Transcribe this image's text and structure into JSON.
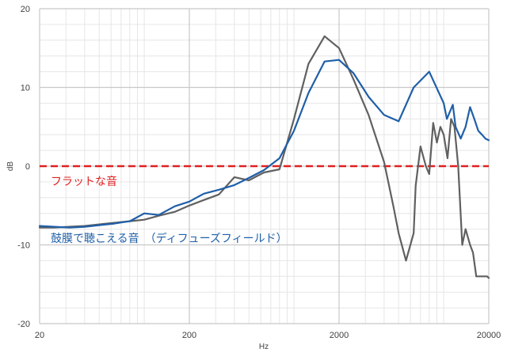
{
  "chart_data": {
    "type": "line",
    "xlabel": "Hz",
    "ylabel": "dB",
    "xscale": "log",
    "xlim": [
      20,
      20000
    ],
    "ylim": [
      -20,
      20
    ],
    "x_ticks": [
      "20",
      "200",
      "2000",
      "20000"
    ],
    "y_ticks": [
      "-20",
      "-10",
      "0",
      "10",
      "20"
    ],
    "grid": true,
    "annotations": [
      {
        "text": "フラットな音",
        "color": "#e02020"
      },
      {
        "text": "鼓膜で聴こえる音　（ディフューズフィールド）",
        "color": "#1f5fa8"
      }
    ],
    "reference_line": {
      "y": 0,
      "color": "#e02020",
      "style": "dashed"
    },
    "series": [
      {
        "color": "#1f5fa8",
        "x": [
          20,
          25,
          31.5,
          40,
          50,
          63,
          80,
          100,
          125,
          160,
          200,
          250,
          315,
          400,
          500,
          630,
          800,
          1000,
          1250,
          1600,
          2000,
          2500,
          3150,
          4000,
          5000,
          6300,
          8000,
          10000,
          10500,
          11500,
          12000,
          13000,
          14000,
          15000,
          16000,
          17000,
          18000,
          19000,
          20000
        ],
        "y": [
          -7.6,
          -7.7,
          -7.8,
          -7.7,
          -7.5,
          -7.3,
          -7.0,
          -6.0,
          -6.2,
          -5.1,
          -4.5,
          -3.5,
          -3.0,
          -2.4,
          -1.5,
          -0.5,
          1.0,
          4.5,
          9.3,
          13.3,
          13.5,
          11.8,
          8.8,
          6.5,
          5.7,
          10.0,
          12.0,
          8.0,
          6.0,
          7.8,
          5.0,
          3.5,
          5.0,
          7.5,
          6.0,
          4.5,
          4.0,
          3.5,
          3.3
        ]
      },
      {
        "color": "#606060",
        "x": [
          20,
          25,
          31.5,
          40,
          50,
          63,
          80,
          100,
          125,
          160,
          200,
          250,
          315,
          400,
          500,
          630,
          800,
          1000,
          1250,
          1600,
          2000,
          2500,
          3150,
          4000,
          4600,
          5000,
          5600,
          6300,
          6500,
          7000,
          7600,
          8000,
          8500,
          9000,
          9500,
          10000,
          10600,
          11200,
          11800,
          12500,
          13300,
          14000,
          15000,
          15700,
          16500,
          17200,
          18000,
          18500,
          19000,
          19500,
          20000
        ],
        "y": [
          -7.8,
          -7.8,
          -7.7,
          -7.6,
          -7.4,
          -7.2,
          -7.0,
          -6.8,
          -6.3,
          -5.8,
          -5.0,
          -4.3,
          -3.6,
          -1.4,
          -1.8,
          -0.8,
          -0.4,
          6.0,
          13.0,
          16.5,
          15.0,
          11.0,
          6.5,
          0.5,
          -5.0,
          -8.5,
          -12.0,
          -8.5,
          -2.5,
          2.5,
          0.0,
          -1.0,
          5.5,
          3.0,
          5.0,
          4.0,
          1.0,
          6.0,
          5.0,
          0.0,
          -10.0,
          -8.0,
          -10.0,
          -11.0,
          -14.0,
          -14.0,
          -14.0,
          -14.0,
          -14.0,
          -14.0,
          -14.2
        ]
      }
    ]
  }
}
